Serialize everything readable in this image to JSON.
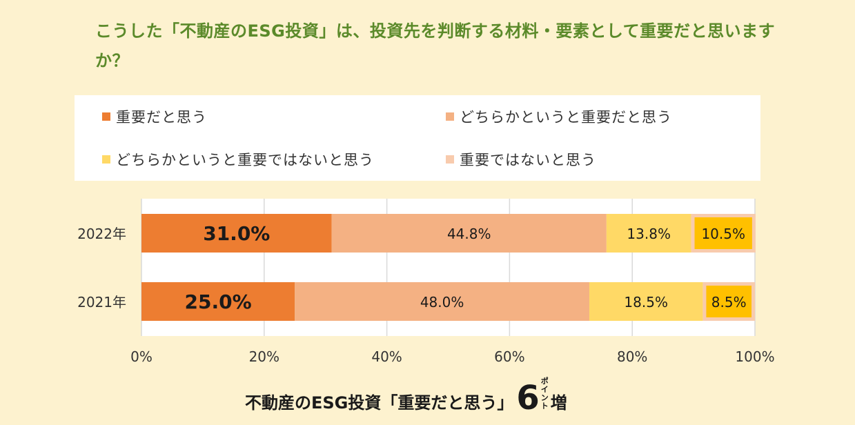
{
  "question": "こうした「不動産のESG投資」は、投資先を判断する材料・要素として重要だと思いますか？",
  "legend": [
    {
      "label": "重要だと思う",
      "color": "#ed7d31"
    },
    {
      "label": "どちらかというと重要だと思う",
      "color": "#f4b183"
    },
    {
      "label": "どちらかというと重要ではないと思う",
      "color": "#ffd966"
    },
    {
      "label": "重要ではないと思う",
      "color": "#f8cbad"
    }
  ],
  "chart_data": {
    "type": "bar",
    "orientation": "horizontal",
    "stacked": true,
    "categories": [
      "2022年",
      "2021年"
    ],
    "series": [
      {
        "name": "重要だと思う",
        "values": [
          31.0,
          25.0
        ],
        "labels": [
          "31.0%",
          "25.0%"
        ],
        "color": "#ed7d31"
      },
      {
        "name": "どちらかというと重要だと思う",
        "values": [
          44.8,
          48.0
        ],
        "labels": [
          "44.8%",
          "48.0%"
        ],
        "color": "#f4b183"
      },
      {
        "name": "どちらかというと重要ではないと思う",
        "values": [
          13.8,
          18.5
        ],
        "labels": [
          "13.8%",
          "18.5%"
        ],
        "color": "#ffd966"
      },
      {
        "name": "重要ではないと思う",
        "values": [
          10.5,
          8.5
        ],
        "labels": [
          "10.5%",
          "8.5%"
        ],
        "color": "#f8cbad"
      }
    ],
    "highlight_color": "#ffc000",
    "xlim": [
      0,
      100
    ],
    "xticks": [
      "0%",
      "20%",
      "40%",
      "60%",
      "80%",
      "100%"
    ],
    "grid": true,
    "legend_position": "top"
  },
  "footer": {
    "main": "不動産のESG投資「重要だと思う」",
    "number": "6",
    "unit": "ポイント",
    "suffix": "増"
  }
}
